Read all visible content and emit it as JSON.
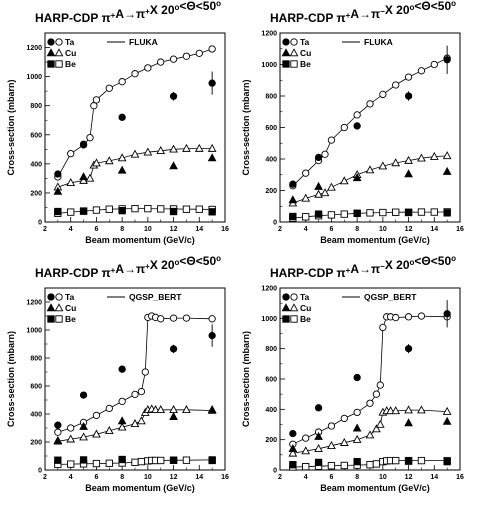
{
  "chart_data": [
    {
      "type": "scatter",
      "title": "HARP-CDP  π⁺A→π⁺X  20°<Θ<50°",
      "xlabel": "Beam momentum (GeV/c)",
      "ylabel": "Cross-section (mbarn)",
      "xlim": [
        2,
        16
      ],
      "ylim": [
        0,
        1300
      ],
      "xticks": [
        2,
        4,
        6,
        8,
        10,
        12,
        14,
        16
      ],
      "yticks": [
        0,
        200,
        400,
        600,
        800,
        1000,
        1200
      ],
      "legend_position": "top-left",
      "legend_entries": [
        "Ta",
        "Cu",
        "Be"
      ],
      "model": "FLUKA",
      "series": [
        {
          "name": "Ta",
          "marker": "circle",
          "x": [
            3,
            5,
            8,
            12,
            15
          ],
          "y": [
            330,
            535,
            720,
            865,
            955
          ],
          "yerr": [
            0,
            0,
            0,
            30,
            80
          ]
        },
        {
          "name": "Cu",
          "marker": "triangle",
          "x": [
            3,
            5,
            8,
            12,
            15
          ],
          "y": [
            210,
            310,
            355,
            385,
            440
          ],
          "yerr": [
            0,
            0,
            0,
            0,
            0
          ]
        },
        {
          "name": "Be",
          "marker": "square",
          "x": [
            3,
            5,
            8,
            12,
            15
          ],
          "y": [
            72,
            75,
            78,
            72,
            70
          ],
          "yerr": [
            0,
            0,
            0,
            0,
            0
          ]
        }
      ],
      "model_curves": [
        {
          "target": "Ta",
          "x": [
            3,
            4,
            5,
            5.5,
            5.8,
            6,
            7,
            8,
            9,
            10,
            11,
            12,
            13,
            14,
            15
          ],
          "y": [
            310,
            470,
            530,
            580,
            800,
            840,
            920,
            965,
            1020,
            1060,
            1100,
            1120,
            1140,
            1160,
            1190
          ]
        },
        {
          "target": "Cu",
          "x": [
            3,
            4,
            5,
            5.5,
            5.8,
            6,
            7,
            8,
            9,
            10,
            11,
            12,
            13,
            14,
            15
          ],
          "y": [
            240,
            270,
            285,
            300,
            390,
            405,
            420,
            440,
            465,
            480,
            490,
            500,
            505,
            505,
            505
          ]
        },
        {
          "target": "Be",
          "x": [
            3,
            4,
            5,
            6,
            7,
            8,
            9,
            10,
            11,
            12,
            13,
            14,
            15
          ],
          "y": [
            60,
            68,
            75,
            82,
            88,
            90,
            92,
            92,
            90,
            90,
            88,
            88,
            86
          ]
        }
      ]
    },
    {
      "type": "scatter",
      "title": "HARP-CDP  π⁺A→π⁻X  20°<Θ<50°",
      "xlabel": "Beam momentum (GeV/c)",
      "ylabel": "Cross-section (mbarn)",
      "xlim": [
        2,
        16
      ],
      "ylim": [
        0,
        1200
      ],
      "xticks": [
        2,
        4,
        6,
        8,
        10,
        12,
        14,
        16
      ],
      "yticks": [
        0,
        200,
        400,
        600,
        800,
        1000,
        1200
      ],
      "legend_position": "top-left",
      "legend_entries": [
        "Ta",
        "Cu",
        "Be"
      ],
      "model": "FLUKA",
      "series": [
        {
          "name": "Ta",
          "marker": "circle",
          "x": [
            3,
            5,
            8,
            12,
            15
          ],
          "y": [
            240,
            410,
            610,
            800,
            1030
          ],
          "yerr": [
            0,
            0,
            0,
            30,
            90
          ]
        },
        {
          "name": "Cu",
          "marker": "triangle",
          "x": [
            3,
            5,
            8,
            12,
            15
          ],
          "y": [
            140,
            225,
            280,
            305,
            320
          ],
          "yerr": [
            0,
            0,
            0,
            0,
            0
          ]
        },
        {
          "name": "Be",
          "marker": "square",
          "x": [
            3,
            5,
            8,
            12,
            15
          ],
          "y": [
            35,
            50,
            55,
            60,
            58
          ],
          "yerr": [
            0,
            0,
            0,
            0,
            0
          ]
        }
      ],
      "model_curves": [
        {
          "target": "Ta",
          "x": [
            3,
            4,
            5,
            5.5,
            6,
            7,
            8,
            9,
            10,
            11,
            12,
            13,
            14,
            15
          ],
          "y": [
            230,
            310,
            390,
            430,
            520,
            600,
            680,
            750,
            810,
            870,
            920,
            960,
            1000,
            1040
          ]
        },
        {
          "target": "Cu",
          "x": [
            3,
            4,
            5,
            5.5,
            6,
            7,
            8,
            9,
            10,
            11,
            12,
            13,
            14,
            15
          ],
          "y": [
            120,
            150,
            175,
            185,
            220,
            260,
            300,
            330,
            355,
            375,
            390,
            405,
            415,
            420
          ]
        },
        {
          "target": "Be",
          "x": [
            3,
            4,
            5,
            6,
            7,
            8,
            9,
            10,
            11,
            12,
            13,
            14,
            15
          ],
          "y": [
            25,
            33,
            40,
            45,
            50,
            55,
            58,
            60,
            62,
            62,
            63,
            63,
            64
          ]
        }
      ]
    },
    {
      "type": "scatter",
      "title": "HARP-CDP  π⁺A→π⁺X  20°<Θ<50°",
      "xlabel": "Beam momentum (GeV/c)",
      "ylabel": "Cross-section (mbarn)",
      "xlim": [
        2,
        16
      ],
      "ylim": [
        0,
        1300
      ],
      "xticks": [
        2,
        4,
        6,
        8,
        10,
        12,
        14,
        16
      ],
      "yticks": [
        0,
        200,
        400,
        600,
        800,
        1000,
        1200
      ],
      "legend_position": "top-left",
      "legend_entries": [
        "Ta",
        "Cu",
        "Be"
      ],
      "model": "QGSP_BERT",
      "series": [
        {
          "name": "Ta",
          "marker": "circle",
          "x": [
            3,
            5,
            8,
            12,
            15
          ],
          "y": [
            320,
            535,
            720,
            865,
            960
          ],
          "yerr": [
            0,
            0,
            0,
            30,
            80
          ]
        },
        {
          "name": "Cu",
          "marker": "triangle",
          "x": [
            3,
            5,
            8,
            12,
            15
          ],
          "y": [
            210,
            310,
            350,
            380,
            430
          ],
          "yerr": [
            0,
            0,
            0,
            0,
            0
          ]
        },
        {
          "name": "Be",
          "marker": "square",
          "x": [
            3,
            5,
            8,
            12,
            15
          ],
          "y": [
            70,
            72,
            75,
            70,
            68
          ],
          "yerr": [
            0,
            0,
            0,
            0,
            0
          ]
        }
      ],
      "model_curves": [
        {
          "target": "Ta",
          "x": [
            3,
            4,
            5,
            6,
            7,
            8,
            9,
            9.5,
            9.8,
            10,
            10.3,
            10.6,
            11,
            12,
            13,
            15
          ],
          "y": [
            270,
            300,
            340,
            390,
            440,
            490,
            540,
            560,
            700,
            1090,
            1100,
            1090,
            1080,
            1085,
            1085,
            1080
          ]
        },
        {
          "target": "Cu",
          "x": [
            3,
            4,
            5,
            6,
            7,
            8,
            9,
            9.5,
            9.8,
            10,
            10.3,
            10.6,
            11,
            12,
            13,
            15
          ],
          "y": [
            205,
            220,
            235,
            255,
            280,
            305,
            330,
            350,
            410,
            430,
            435,
            430,
            430,
            430,
            430,
            425
          ]
        },
        {
          "target": "Be",
          "x": [
            3,
            4,
            5,
            6,
            7,
            8,
            9,
            9.5,
            10,
            10.3,
            10.6,
            11,
            12,
            13,
            15
          ],
          "y": [
            40,
            42,
            44,
            46,
            48,
            50,
            55,
            60,
            65,
            68,
            68,
            68,
            70,
            70,
            72
          ]
        }
      ]
    },
    {
      "type": "scatter",
      "title": "HARP-CDP  π⁺A→π⁻X  20°<Θ<50°",
      "xlabel": "Beam momentum (GeV/c)",
      "ylabel": "Cross-section (mbarn)",
      "xlim": [
        2,
        16
      ],
      "ylim": [
        0,
        1200
      ],
      "xticks": [
        2,
        4,
        6,
        8,
        10,
        12,
        14,
        16
      ],
      "yticks": [
        0,
        200,
        400,
        600,
        800,
        1000,
        1200
      ],
      "legend_position": "top-left",
      "legend_entries": [
        "Ta",
        "Cu",
        "Be"
      ],
      "model": "QGSP_BERT",
      "series": [
        {
          "name": "Ta",
          "marker": "circle",
          "x": [
            3,
            5,
            8,
            12,
            15
          ],
          "y": [
            240,
            410,
            610,
            800,
            1030
          ],
          "yerr": [
            0,
            0,
            0,
            30,
            90
          ]
        },
        {
          "name": "Cu",
          "marker": "triangle",
          "x": [
            3,
            5,
            8,
            12,
            15
          ],
          "y": [
            140,
            220,
            275,
            310,
            320
          ],
          "yerr": [
            0,
            0,
            0,
            0,
            0
          ]
        },
        {
          "name": "Be",
          "marker": "square",
          "x": [
            3,
            5,
            8,
            12,
            15
          ],
          "y": [
            35,
            50,
            55,
            58,
            55
          ],
          "yerr": [
            0,
            0,
            0,
            0,
            0
          ]
        }
      ],
      "model_curves": [
        {
          "target": "Ta",
          "x": [
            3,
            4,
            5,
            6,
            7,
            8,
            9,
            9.5,
            9.8,
            10,
            10.3,
            10.6,
            11,
            12,
            13,
            15
          ],
          "y": [
            170,
            210,
            250,
            290,
            340,
            380,
            440,
            500,
            560,
            940,
            1010,
            1010,
            1005,
            1010,
            1015,
            1010
          ]
        },
        {
          "target": "Cu",
          "x": [
            3,
            4,
            5,
            6,
            7,
            8,
            9,
            9.5,
            9.8,
            10,
            10.3,
            10.6,
            11,
            12,
            13,
            15
          ],
          "y": [
            110,
            125,
            140,
            160,
            180,
            200,
            230,
            270,
            300,
            380,
            390,
            390,
            390,
            395,
            395,
            385
          ]
        },
        {
          "target": "Be",
          "x": [
            3,
            4,
            5,
            6,
            7,
            8,
            9,
            9.5,
            10,
            10.3,
            10.6,
            11,
            12,
            13,
            15
          ],
          "y": [
            20,
            22,
            25,
            28,
            30,
            32,
            35,
            40,
            55,
            60,
            62,
            62,
            62,
            62,
            62
          ]
        }
      ]
    }
  ]
}
